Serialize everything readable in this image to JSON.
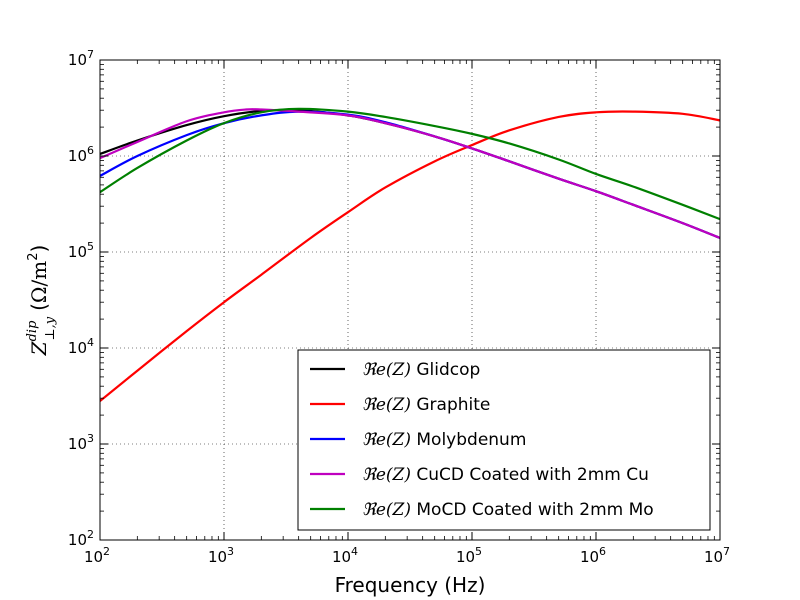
{
  "chart_data": {
    "type": "line",
    "title": "",
    "xlabel": "Frequency (Hz)",
    "ylabel": "Z^{dip}_{⊥,y} (Ω/m²)",
    "ylabel_parts": {
      "base": "Z",
      "sup": "dip",
      "sub": "⊥,y",
      "unit_open": "(",
      "unit_num": "Ω/m",
      "unit_exp": "2",
      "unit_close": ")"
    },
    "xscale": "log",
    "yscale": "log",
    "xlim": [
      100,
      10000000
    ],
    "ylim": [
      100,
      10000000
    ],
    "grid": true,
    "legend_position": "lower-right",
    "x_ticks": [
      {
        "base": "10",
        "exp": "2"
      },
      {
        "base": "10",
        "exp": "3"
      },
      {
        "base": "10",
        "exp": "4"
      },
      {
        "base": "10",
        "exp": "5"
      },
      {
        "base": "10",
        "exp": "6"
      },
      {
        "base": "10",
        "exp": "7"
      }
    ],
    "y_ticks": [
      {
        "base": "10",
        "exp": "2"
      },
      {
        "base": "10",
        "exp": "3"
      },
      {
        "base": "10",
        "exp": "4"
      },
      {
        "base": "10",
        "exp": "5"
      },
      {
        "base": "10",
        "exp": "6"
      },
      {
        "base": "10",
        "exp": "7"
      }
    ],
    "series": [
      {
        "name": "Glidcop",
        "legend_prefix": "ℜe(Z)",
        "color": "#000000",
        "x": [
          100,
          200,
          500,
          1000,
          2000,
          4000,
          10000,
          20000,
          50000,
          100000,
          200000,
          500000,
          1000000,
          2000000,
          5000000,
          10000000
        ],
        "y": [
          1050000,
          1450000,
          2100000,
          2600000,
          2950000,
          3000000,
          2650000,
          2200000,
          1600000,
          1200000,
          880000,
          580000,
          430000,
          310000,
          200000,
          140000
        ]
      },
      {
        "name": "Graphite",
        "legend_prefix": "ℜe(Z)",
        "color": "#ff0000",
        "x": [
          100,
          200,
          500,
          1000,
          2000,
          5000,
          10000,
          20000,
          50000,
          100000,
          200000,
          500000,
          1000000,
          2000000,
          5000000,
          10000000
        ],
        "y": [
          2800,
          5800,
          15000,
          30000,
          58000,
          140000,
          260000,
          470000,
          880000,
          1300000,
          1850000,
          2550000,
          2850000,
          2900000,
          2750000,
          2350000
        ]
      },
      {
        "name": "Molybdenum",
        "legend_prefix": "ℜe(Z)",
        "color": "#0000ff",
        "x": [
          100,
          200,
          500,
          1000,
          2000,
          4000,
          10000,
          20000,
          50000,
          100000,
          200000,
          500000,
          1000000,
          2000000,
          5000000,
          10000000
        ],
        "y": [
          620000,
          1000000,
          1650000,
          2200000,
          2650000,
          2900000,
          2700000,
          2250000,
          1600000,
          1200000,
          880000,
          580000,
          430000,
          310000,
          200000,
          140000
        ]
      },
      {
        "name": "CuCD Coated with 2mm Cu",
        "legend_prefix": "ℜe(Z)",
        "color": "#bf00bf",
        "x": [
          100,
          200,
          500,
          1000,
          1500,
          2000,
          4000,
          10000,
          20000,
          50000,
          100000,
          200000,
          500000,
          1000000,
          2000000,
          5000000,
          10000000
        ],
        "y": [
          950000,
          1400000,
          2300000,
          2850000,
          3050000,
          3050000,
          2900000,
          2650000,
          2200000,
          1600000,
          1200000,
          880000,
          580000,
          430000,
          310000,
          200000,
          140000
        ]
      },
      {
        "name": "MoCD Coated with 2mm Mo",
        "legend_prefix": "ℜe(Z)",
        "color": "#008000",
        "x": [
          100,
          200,
          500,
          1000,
          2000,
          4000,
          10000,
          20000,
          50000,
          100000,
          200000,
          500000,
          1000000,
          2000000,
          5000000,
          10000000
        ],
        "y": [
          420000,
          750000,
          1450000,
          2200000,
          2850000,
          3100000,
          2900000,
          2550000,
          2050000,
          1700000,
          1350000,
          920000,
          650000,
          480000,
          310000,
          220000
        ]
      }
    ]
  }
}
